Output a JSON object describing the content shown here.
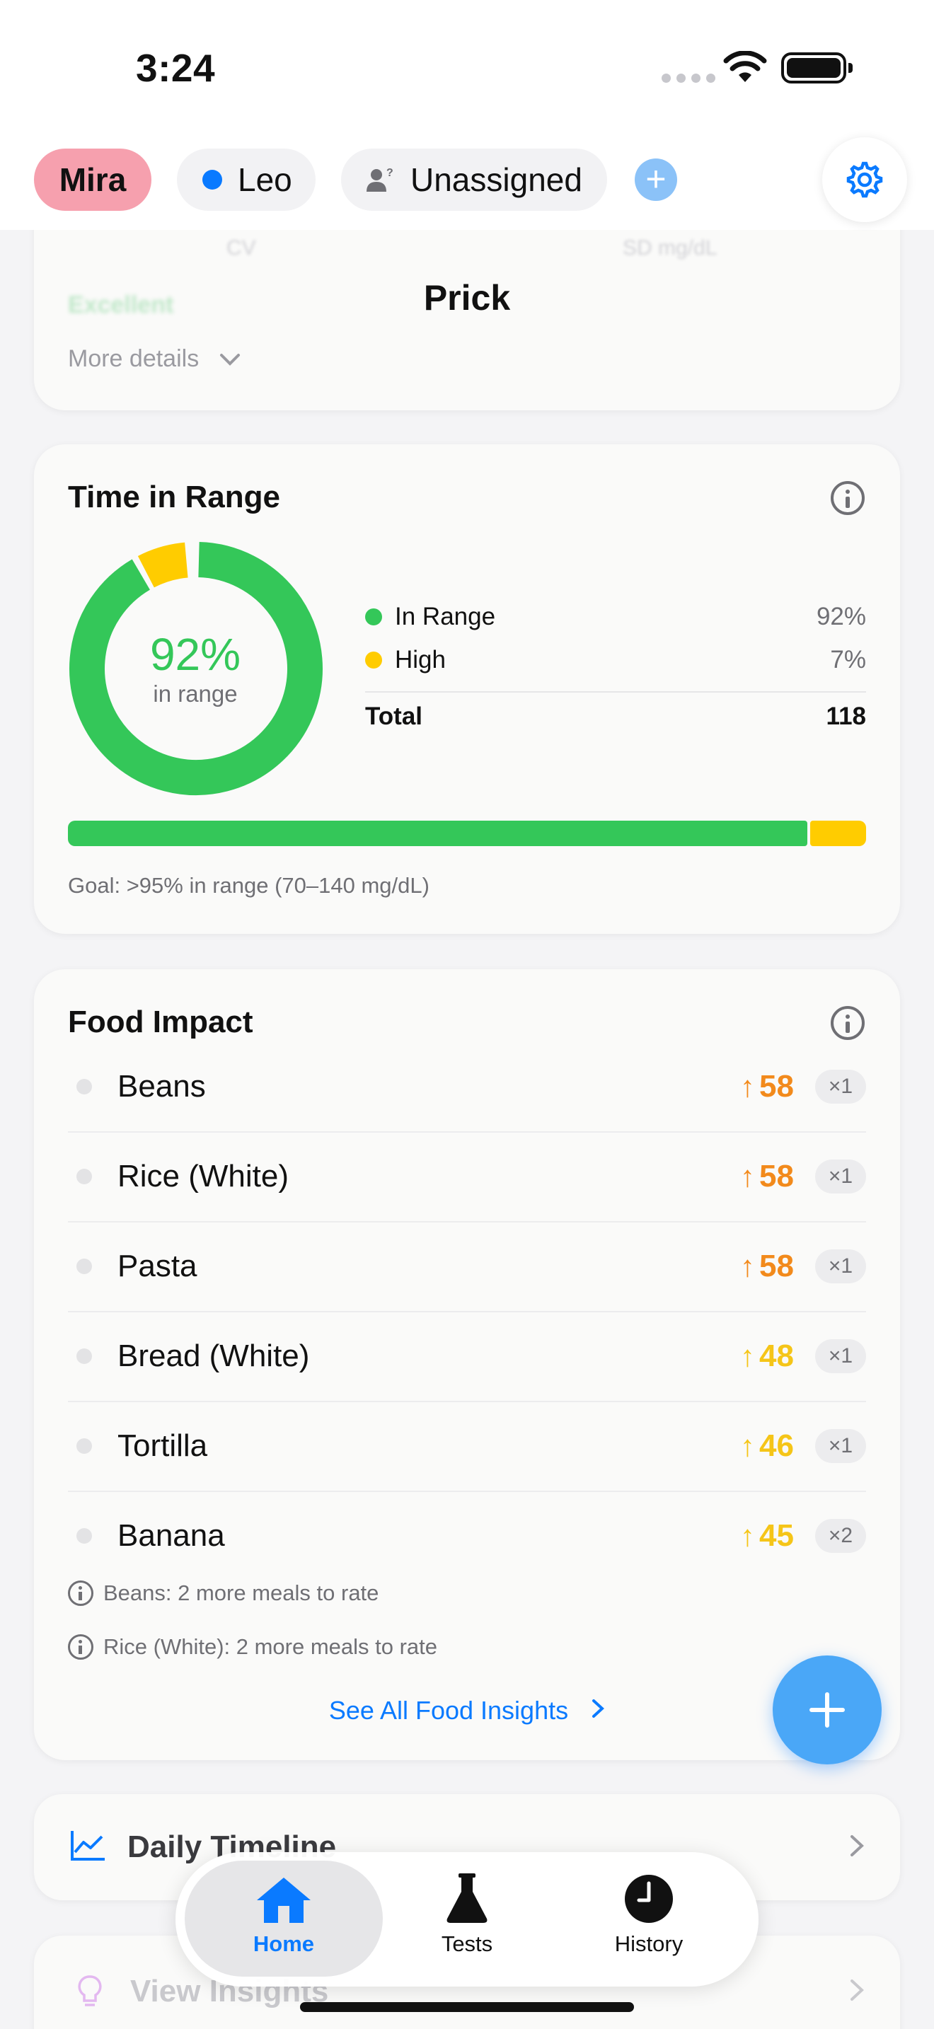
{
  "status_bar": {
    "time": "3:24"
  },
  "profiles": {
    "items": [
      {
        "name": "Mira",
        "selected": true,
        "color": "#f6a0ae"
      },
      {
        "name": "Leo",
        "color": "#0a7aff"
      },
      {
        "name": "Unassigned"
      }
    ],
    "add_icon": "plus-icon",
    "settings_icon": "gear-icon"
  },
  "top_card": {
    "title": "Prick",
    "rating": "Excellent",
    "more_details": "More details"
  },
  "time_in_range": {
    "title": "Time in Range",
    "center_value": "92%",
    "center_label": "in range",
    "legend": [
      {
        "label": "In Range",
        "value": "92%",
        "color": "#34c759"
      },
      {
        "label": "High",
        "value": "7%",
        "color": "#ffcc00"
      }
    ],
    "total_label": "Total",
    "total_value": "118",
    "in_range_fraction": 0.92,
    "high_fraction": 0.07,
    "goal": "Goal: >95% in range (70–140 mg/dL)"
  },
  "food_impact": {
    "title": "Food Impact",
    "items": [
      {
        "name": "Beans",
        "value": "58",
        "count": "×1",
        "color": "#f28a1c"
      },
      {
        "name": "Rice (White)",
        "value": "58",
        "count": "×1",
        "color": "#f28a1c"
      },
      {
        "name": "Pasta",
        "value": "58",
        "count": "×1",
        "color": "#f28a1c"
      },
      {
        "name": "Bread (White)",
        "value": "48",
        "count": "×1",
        "color": "#f5c518"
      },
      {
        "name": "Tortilla",
        "value": "46",
        "count": "×1",
        "color": "#f5c518"
      },
      {
        "name": "Banana",
        "value": "45",
        "count": "×2",
        "color": "#f5c518"
      }
    ],
    "notes": [
      "Beans: 2 more meals to rate",
      "Rice (White): 2 more meals to rate"
    ],
    "see_all": "See All Food Insights"
  },
  "daily_timeline": {
    "label": "Daily Timeline"
  },
  "view_insights": {
    "label": "View Insights"
  },
  "tabbar": {
    "tabs": [
      {
        "label": "Home",
        "icon": "house-icon",
        "active": true
      },
      {
        "label": "Tests",
        "icon": "flask-icon"
      },
      {
        "label": "History",
        "icon": "clock-icon"
      }
    ]
  }
}
